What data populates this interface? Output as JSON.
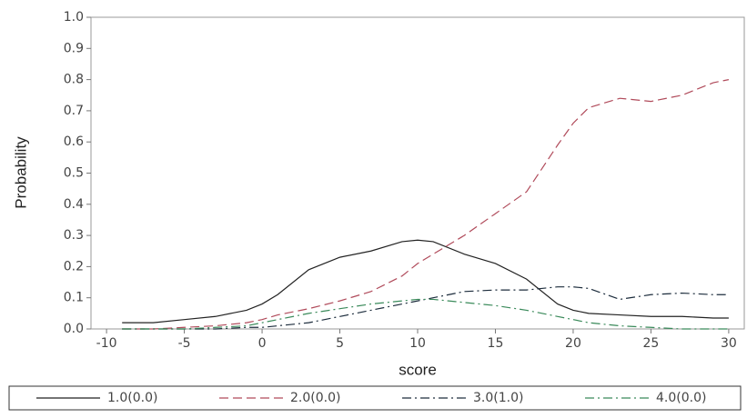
{
  "chart_data": {
    "type": "line",
    "x_label": "score",
    "y_label": "Probability",
    "x": [
      -9,
      -7,
      -5,
      -3,
      -1,
      0,
      1,
      3,
      5,
      7,
      9,
      10,
      11,
      13,
      15,
      17,
      19,
      20,
      21,
      23,
      25,
      27,
      29,
      30
    ],
    "series": [
      {
        "name": "1.0(0.0)",
        "color": "#222222",
        "style": "solid",
        "values": [
          0.02,
          0.02,
          0.03,
          0.04,
          0.06,
          0.08,
          0.11,
          0.19,
          0.23,
          0.25,
          0.28,
          0.285,
          0.28,
          0.24,
          0.21,
          0.16,
          0.08,
          0.06,
          0.05,
          0.045,
          0.04,
          0.04,
          0.035,
          0.035
        ]
      },
      {
        "name": "2.0(0.0)",
        "color": "#b04a5a",
        "style": "dashed",
        "values": [
          0,
          0,
          0.005,
          0.01,
          0.02,
          0.03,
          0.045,
          0.065,
          0.09,
          0.12,
          0.17,
          0.21,
          0.24,
          0.3,
          0.37,
          0.44,
          0.59,
          0.66,
          0.71,
          0.74,
          0.73,
          0.75,
          0.79,
          0.8
        ]
      },
      {
        "name": "3.0(1.0)",
        "color": "#1c2c3c",
        "style": "dashdot",
        "values": [
          0,
          0,
          0,
          0,
          0.005,
          0.005,
          0.01,
          0.02,
          0.04,
          0.06,
          0.08,
          0.09,
          0.1,
          0.12,
          0.125,
          0.125,
          0.135,
          0.135,
          0.13,
          0.095,
          0.11,
          0.115,
          0.11,
          0.11
        ]
      },
      {
        "name": "4.0(0.0)",
        "color": "#3a8a5a",
        "style": "dashdot",
        "values": [
          0,
          0,
          0,
          0.005,
          0.01,
          0.02,
          0.03,
          0.05,
          0.065,
          0.08,
          0.09,
          0.095,
          0.095,
          0.085,
          0.075,
          0.06,
          0.04,
          0.03,
          0.02,
          0.01,
          0.005,
          0,
          0,
          0
        ]
      }
    ],
    "xlim": [
      -11,
      31
    ],
    "ylim": [
      0,
      1
    ],
    "xticks": [
      -10,
      -5,
      0,
      5,
      10,
      15,
      20,
      25,
      30
    ],
    "yticks": [
      {
        "value": 0,
        "label": "0.0"
      },
      {
        "value": 0.1,
        "label": "0.1"
      },
      {
        "value": 0.2,
        "label": "0.2"
      },
      {
        "value": 0.3,
        "label": "0.3"
      },
      {
        "value": 0.4,
        "label": "0.4"
      },
      {
        "value": 0.5,
        "label": "0.5"
      },
      {
        "value": 0.6,
        "label": "0.6"
      },
      {
        "value": 0.7,
        "label": "0.7"
      },
      {
        "value": 0.8,
        "label": "0.8"
      },
      {
        "value": 0.9,
        "label": "0.9"
      },
      {
        "value": 1,
        "label": "1.0"
      }
    ],
    "legend": "bottom"
  }
}
